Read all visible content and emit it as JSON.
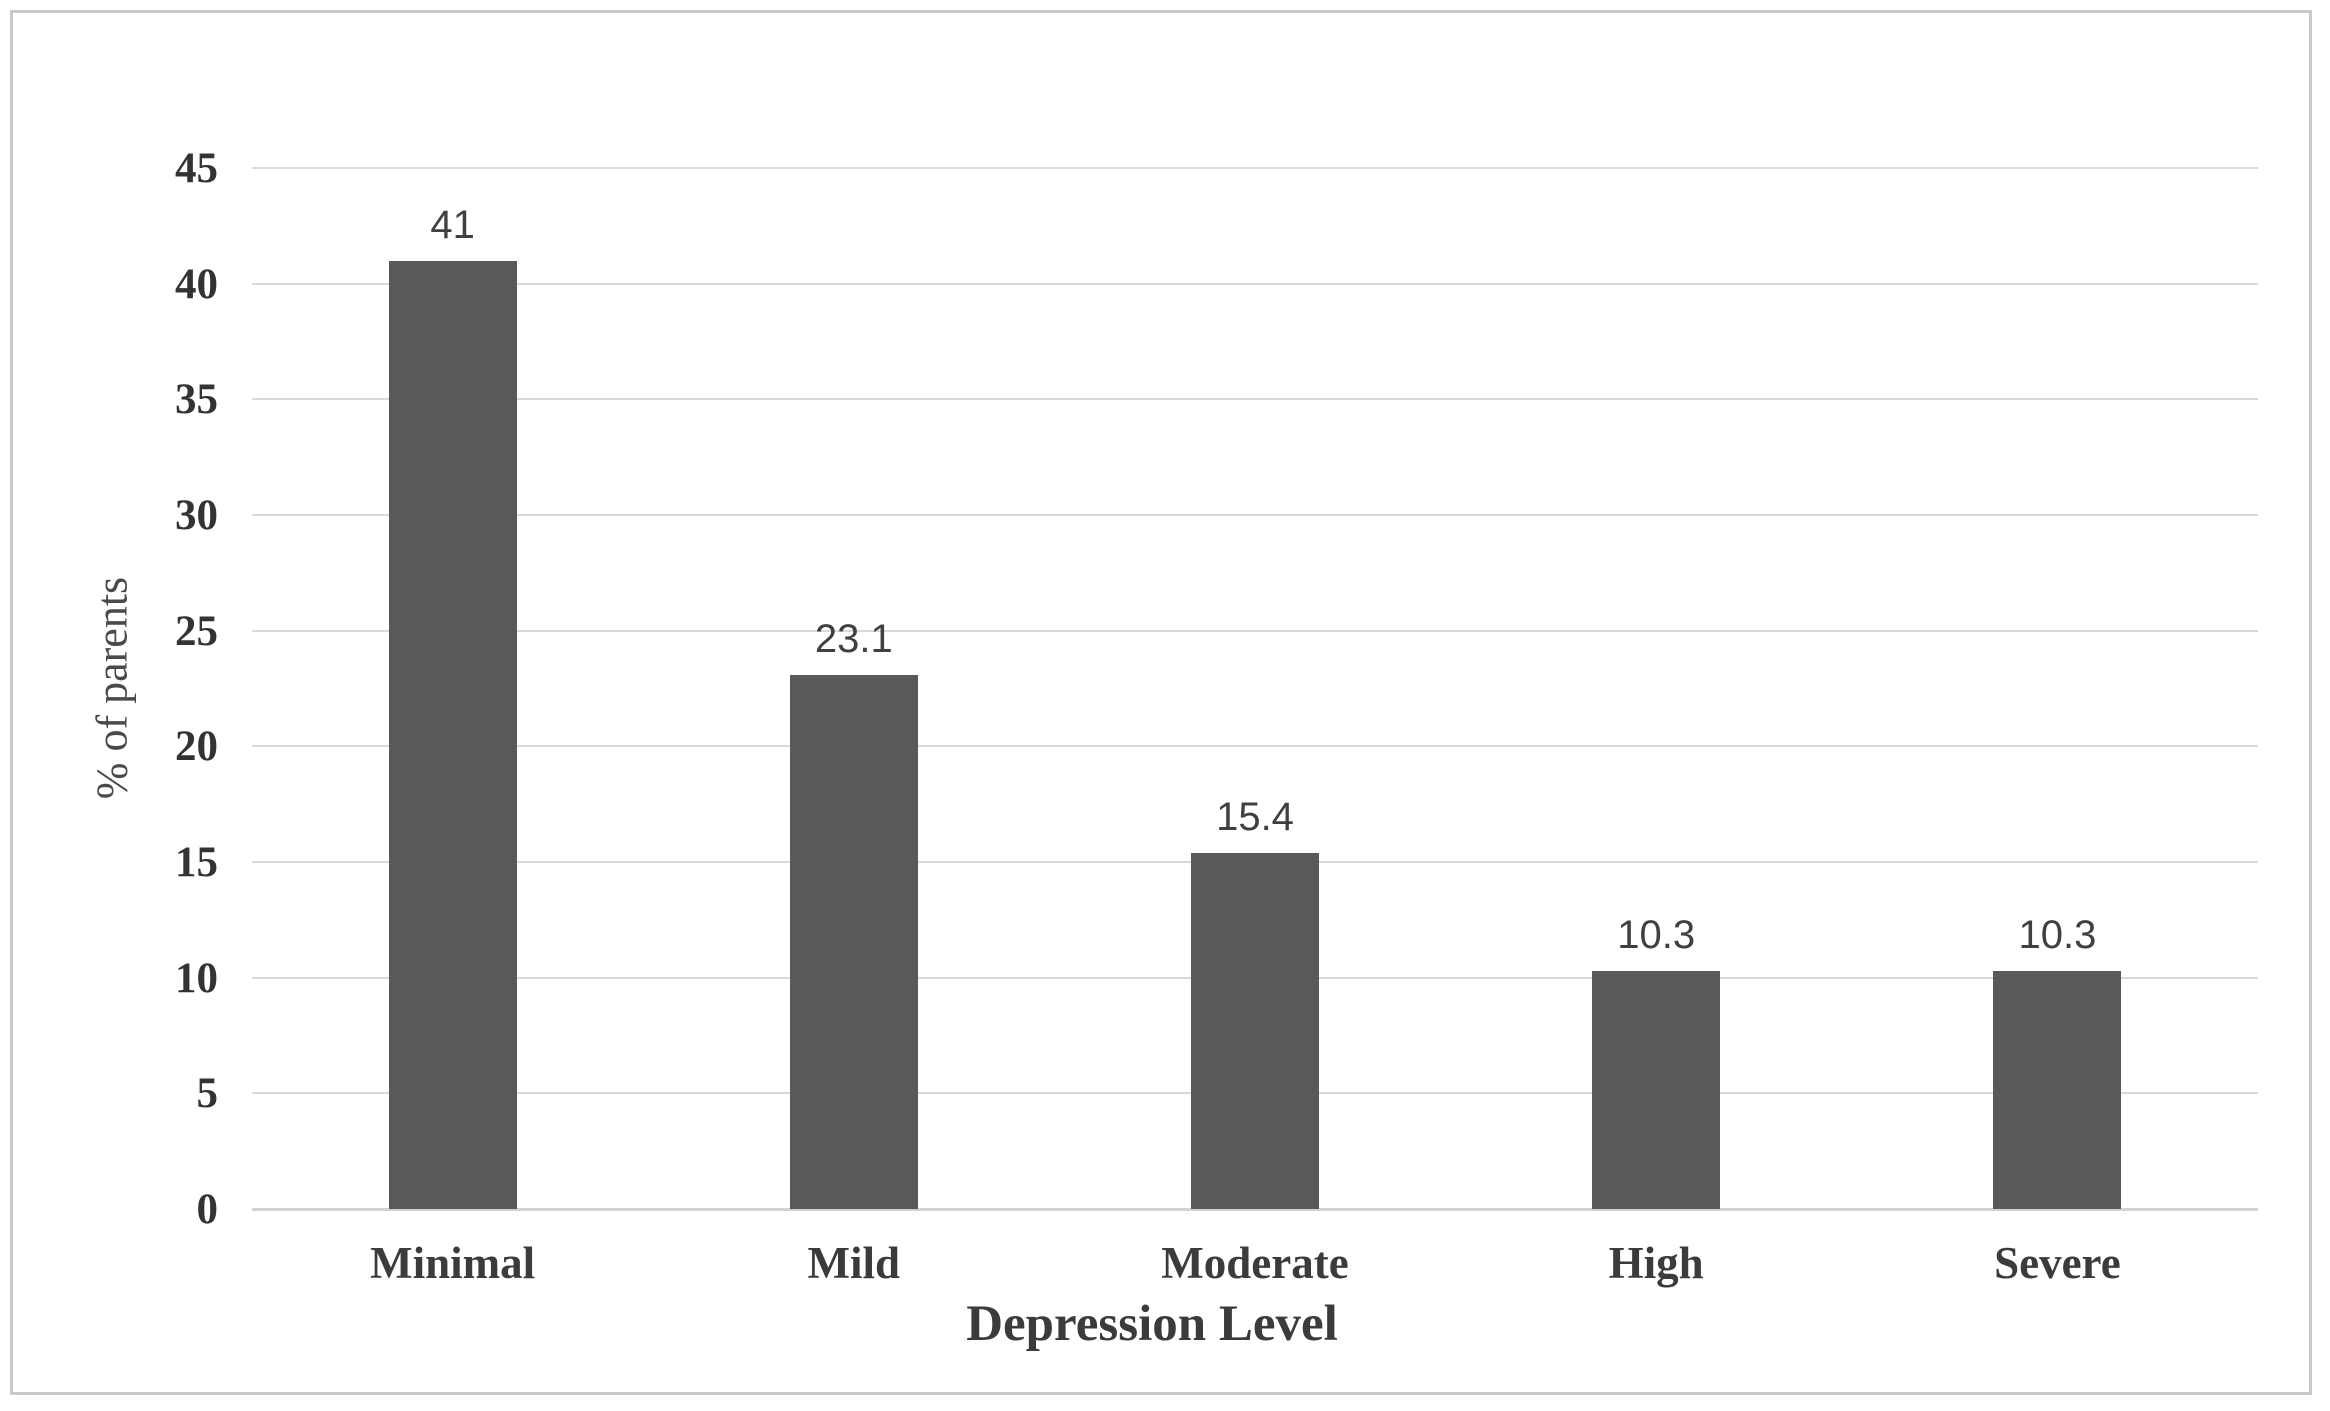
{
  "chart_data": {
    "type": "bar",
    "title": "",
    "categories": [
      "Minimal",
      "Mild",
      "Moderate",
      "High",
      "Severe"
    ],
    "values": [
      41,
      23.1,
      15.4,
      10.3,
      10.3
    ],
    "data_labels": [
      "41",
      "23.1",
      "15.4",
      "10.3",
      "10.3"
    ],
    "xlabel": "Depression Level",
    "ylabel": "% of parents",
    "ylim": [
      0,
      45
    ],
    "yticks": [
      0,
      5,
      10,
      15,
      20,
      25,
      30,
      35,
      40,
      45
    ],
    "grid": "horizontal-only",
    "legend": "none",
    "colors": {
      "bar_fill": "#595959",
      "gridline": "#d9d9d9",
      "axis_line": "#d2d2d2",
      "tick_label": "#333333",
      "category_label": "#3b3b3b",
      "data_label": "#404040",
      "frame_border": "#c9c9c9",
      "background": "#ffffff"
    }
  }
}
